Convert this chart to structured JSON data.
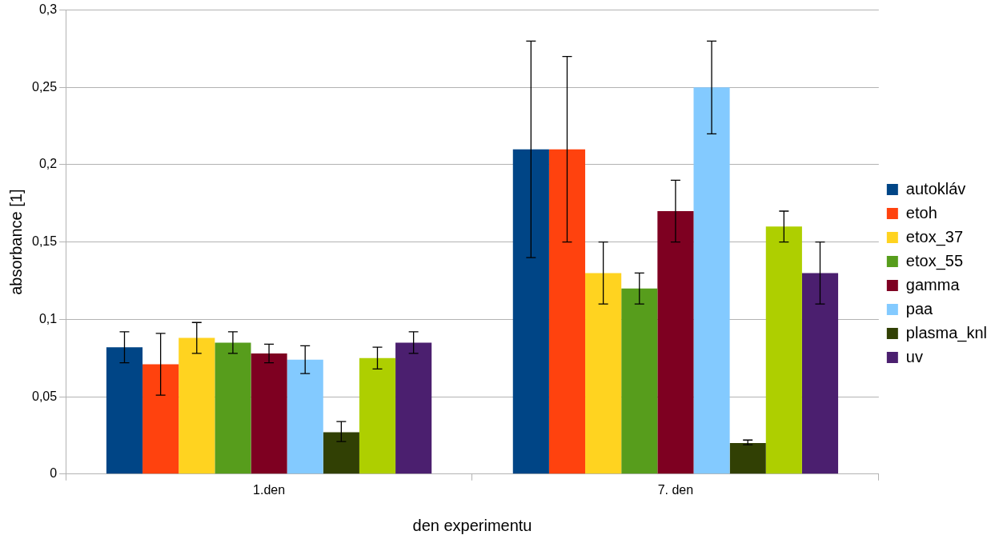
{
  "chart_data": {
    "type": "bar",
    "xlabel": "den experimentu",
    "ylabel": "absorbance [1]",
    "categories": [
      "1.den",
      "7. den"
    ],
    "series": [
      {
        "name": "autokláv",
        "color": "#004586",
        "values": [
          0.082,
          0.21
        ],
        "errors": [
          [
            0.072,
            0.092
          ],
          [
            0.14,
            0.28
          ]
        ]
      },
      {
        "name": "etoh",
        "color": "#ff420e",
        "values": [
          0.071,
          0.21
        ],
        "errors": [
          [
            0.051,
            0.091
          ],
          [
            0.15,
            0.27
          ]
        ]
      },
      {
        "name": "etox_37",
        "color": "#ffd320",
        "values": [
          0.088,
          0.13
        ],
        "errors": [
          [
            0.078,
            0.098
          ],
          [
            0.11,
            0.15
          ]
        ]
      },
      {
        "name": "etox_55",
        "color": "#579d1c",
        "values": [
          0.085,
          0.12
        ],
        "errors": [
          [
            0.078,
            0.092
          ],
          [
            0.11,
            0.13
          ]
        ]
      },
      {
        "name": "gamma",
        "color": "#7e0021",
        "values": [
          0.078,
          0.17
        ],
        "errors": [
          [
            0.072,
            0.084
          ],
          [
            0.15,
            0.19
          ]
        ]
      },
      {
        "name": "paa",
        "color": "#83caff",
        "values": [
          0.074,
          0.25
        ],
        "errors": [
          [
            0.065,
            0.083
          ],
          [
            0.22,
            0.28
          ]
        ]
      },
      {
        "name": "plasma_knl",
        "color": "#314004",
        "values": [
          0.027,
          0.02
        ],
        "errors": [
          [
            0.021,
            0.034
          ],
          [
            0.019,
            0.022
          ]
        ]
      },
      {
        "color": "#aecf00",
        "values": [
          0.075,
          0.16
        ],
        "errors": [
          [
            0.068,
            0.082
          ],
          [
            0.15,
            0.17
          ]
        ]
      },
      {
        "name": "uv",
        "color": "#4b1f6f",
        "values": [
          0.085,
          0.13
        ],
        "errors": [
          [
            0.078,
            0.092
          ],
          [
            0.11,
            0.15
          ]
        ]
      }
    ],
    "ylim": [
      0,
      0.3
    ],
    "yticks": [
      {
        "value": 0,
        "label": "0"
      },
      {
        "value": 0.05,
        "label": "0,05"
      },
      {
        "value": 0.1,
        "label": "0,1"
      },
      {
        "value": 0.15,
        "label": "0,15"
      },
      {
        "value": 0.2,
        "label": "0,2"
      },
      {
        "value": 0.25,
        "label": "0,25"
      },
      {
        "value": 0.3,
        "label": "0,3"
      }
    ],
    "grid": "y",
    "legend": "right"
  }
}
